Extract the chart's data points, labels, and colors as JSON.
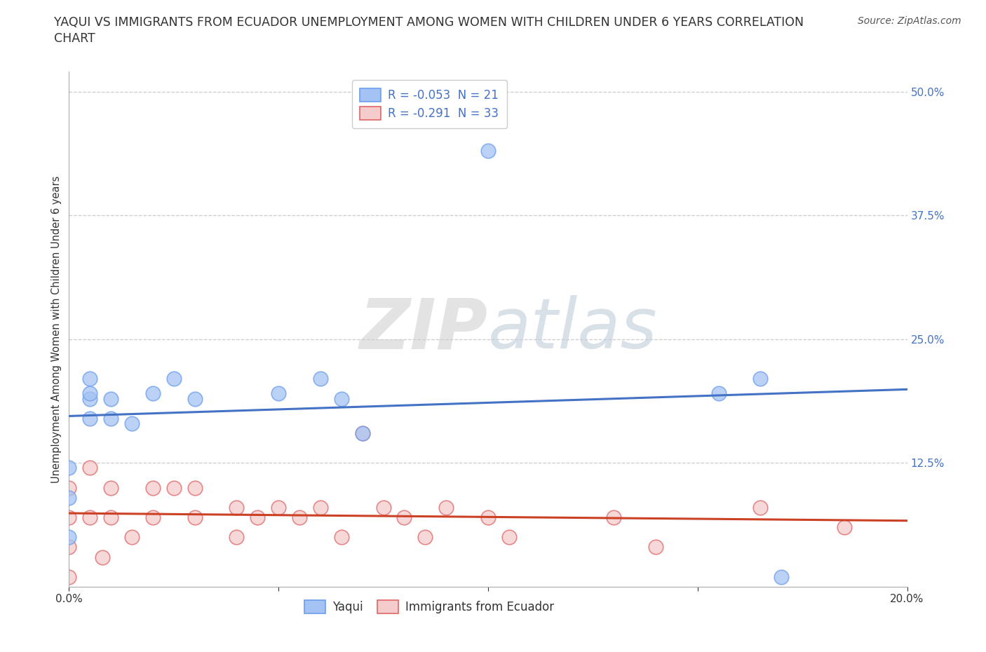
{
  "title_line1": "YAQUI VS IMMIGRANTS FROM ECUADOR UNEMPLOYMENT AMONG WOMEN WITH CHILDREN UNDER 6 YEARS CORRELATION",
  "title_line2": "CHART",
  "source": "Source: ZipAtlas.com",
  "ylabel": "Unemployment Among Women with Children Under 6 years",
  "xlim": [
    0.0,
    0.2
  ],
  "ylim": [
    0.0,
    0.52
  ],
  "xticks": [
    0.0,
    0.05,
    0.1,
    0.15,
    0.2
  ],
  "xticklabels": [
    "0.0%",
    "",
    "",
    "",
    "20.0%"
  ],
  "ytick_positions": [
    0.125,
    0.25,
    0.375,
    0.5
  ],
  "ytick_labels": [
    "12.5%",
    "25.0%",
    "37.5%",
    "50.0%"
  ],
  "watermark_zip": "ZIP",
  "watermark_atlas": "atlas",
  "legend_r1": "R = -0.053  N = 21",
  "legend_r2": "R = -0.291  N = 33",
  "blue_fill": "#a4c2f4",
  "blue_edge": "#6d9eeb",
  "pink_fill": "#f4cccc",
  "pink_edge": "#e06666",
  "blue_line_color": "#4472c4",
  "pink_line_color": "#cc4125",
  "legend_r_color": "#4472c4",
  "yaqui_x": [
    0.0,
    0.0,
    0.0,
    0.005,
    0.005,
    0.005,
    0.005,
    0.01,
    0.01,
    0.015,
    0.02,
    0.025,
    0.03,
    0.05,
    0.06,
    0.065,
    0.07,
    0.1,
    0.155,
    0.165,
    0.17
  ],
  "yaqui_y": [
    0.05,
    0.09,
    0.12,
    0.17,
    0.19,
    0.195,
    0.21,
    0.17,
    0.19,
    0.165,
    0.195,
    0.21,
    0.19,
    0.195,
    0.21,
    0.19,
    0.155,
    0.44,
    0.195,
    0.21,
    0.01
  ],
  "ecuador_x": [
    0.0,
    0.0,
    0.0,
    0.0,
    0.005,
    0.005,
    0.008,
    0.01,
    0.01,
    0.015,
    0.02,
    0.02,
    0.025,
    0.03,
    0.03,
    0.04,
    0.04,
    0.045,
    0.05,
    0.055,
    0.06,
    0.065,
    0.07,
    0.075,
    0.08,
    0.085,
    0.09,
    0.1,
    0.105,
    0.13,
    0.14,
    0.165,
    0.185
  ],
  "ecuador_y": [
    0.1,
    0.07,
    0.04,
    0.01,
    0.12,
    0.07,
    0.03,
    0.1,
    0.07,
    0.05,
    0.1,
    0.07,
    0.1,
    0.1,
    0.07,
    0.08,
    0.05,
    0.07,
    0.08,
    0.07,
    0.08,
    0.05,
    0.155,
    0.08,
    0.07,
    0.05,
    0.08,
    0.07,
    0.05,
    0.07,
    0.04,
    0.08,
    0.06
  ],
  "background_color": "#ffffff",
  "title_fontsize": 12.5,
  "axis_label_fontsize": 10.5,
  "tick_fontsize": 11,
  "source_fontsize": 10,
  "legend_fontsize": 12,
  "scatter_size": 220,
  "scatter_alpha": 0.75
}
